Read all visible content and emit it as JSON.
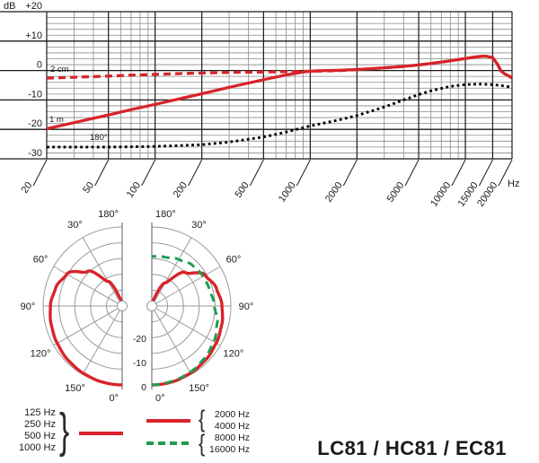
{
  "title": "LC81 / HC81 / EC81",
  "colors": {
    "red": "#d8232a",
    "green": "#1f9d4f",
    "black": "#000000",
    "grid_major": "#1a1a1a",
    "grid_minor": "#8a8a8a",
    "polar_grid": "#9a9a9a",
    "text": "#1a1a1a"
  },
  "chart_data": [
    {
      "type": "line",
      "name": "frequency_response",
      "y_axis_unit": "dB",
      "x_axis_unit": "Hz",
      "ylim": [
        -30,
        20
      ],
      "y_major_ticks": [
        "+20",
        "+10",
        "0",
        "-10",
        "-20",
        "-30"
      ],
      "y_major_values": [
        20,
        10,
        0,
        -10,
        -20,
        -30
      ],
      "y_minor_step_db": 2,
      "xlim": [
        20,
        20000
      ],
      "x_scale": "log",
      "x_tick_labels": [
        "20",
        "50",
        "100",
        "200",
        "500",
        "1000",
        "2000",
        "5000",
        "10000",
        "15000",
        "20000"
      ],
      "x_tick_values": [
        20,
        50,
        100,
        200,
        500,
        1000,
        2000,
        5000,
        10000,
        15000,
        20000
      ],
      "grid": true,
      "series": [
        {
          "name": "2 cm",
          "style": "dashed",
          "color": "red",
          "points": [
            [
              20,
              -2.6
            ],
            [
              30,
              -2.3
            ],
            [
              50,
              -1.9
            ],
            [
              70,
              -1.6
            ],
            [
              100,
              -1.3
            ],
            [
              150,
              -1.0
            ],
            [
              200,
              -0.85
            ],
            [
              300,
              -0.65
            ],
            [
              500,
              -0.5
            ],
            [
              700,
              -0.4
            ],
            [
              1000,
              -0.25
            ],
            [
              1500,
              -0.05
            ],
            [
              2000,
              0.3
            ],
            [
              3000,
              0.9
            ],
            [
              4000,
              1.4
            ],
            [
              5000,
              1.9
            ],
            [
              6000,
              2.4
            ],
            [
              8000,
              3.3
            ],
            [
              10000,
              4.1
            ],
            [
              12000,
              4.7
            ],
            [
              13500,
              4.9
            ],
            [
              15000,
              4.4
            ],
            [
              16000,
              2.4
            ],
            [
              17000,
              -0.2
            ],
            [
              18000,
              -1.2
            ],
            [
              19000,
              -1.8
            ],
            [
              20000,
              -2.6
            ]
          ]
        },
        {
          "name": "1 m",
          "style": "solid",
          "color": "red",
          "points": [
            [
              20,
              -19.8
            ],
            [
              30,
              -17.7
            ],
            [
              50,
              -15.1
            ],
            [
              70,
              -13.3
            ],
            [
              100,
              -11.5
            ],
            [
              150,
              -9.4
            ],
            [
              200,
              -7.9
            ],
            [
              300,
              -5.7
            ],
            [
              500,
              -3.1
            ],
            [
              700,
              -1.5
            ],
            [
              900,
              -0.5
            ],
            [
              1100,
              -0.1
            ],
            [
              1500,
              0.05
            ],
            [
              2000,
              0.35
            ],
            [
              3000,
              0.9
            ],
            [
              4000,
              1.4
            ],
            [
              5000,
              1.9
            ],
            [
              6000,
              2.4
            ],
            [
              8000,
              3.3
            ],
            [
              10000,
              4.1
            ],
            [
              12000,
              4.7
            ],
            [
              13500,
              4.9
            ],
            [
              15000,
              4.4
            ],
            [
              16000,
              2.4
            ],
            [
              17000,
              -0.2
            ],
            [
              18000,
              -1.2
            ],
            [
              19000,
              -1.8
            ],
            [
              20000,
              -2.6
            ]
          ]
        },
        {
          "name": "180°",
          "style": "dotted",
          "color": "black",
          "points": [
            [
              20,
              -26
            ],
            [
              50,
              -26
            ],
            [
              100,
              -25.8
            ],
            [
              200,
              -25.2
            ],
            [
              300,
              -24.3
            ],
            [
              500,
              -22.6
            ],
            [
              700,
              -20.9
            ],
            [
              1000,
              -18.8
            ],
            [
              1500,
              -16.9
            ],
            [
              2000,
              -15.3
            ],
            [
              3000,
              -12.4
            ],
            [
              4000,
              -10
            ],
            [
              5000,
              -8.2
            ],
            [
              6000,
              -6.9
            ],
            [
              8000,
              -5.4
            ],
            [
              10000,
              -4.8
            ],
            [
              12000,
              -4.6
            ],
            [
              15000,
              -4.8
            ],
            [
              17000,
              -5.1
            ],
            [
              20000,
              -5.7
            ]
          ]
        }
      ]
    },
    {
      "type": "polar",
      "name": "polar_pattern",
      "rings_db": [
        0,
        -5,
        -10,
        -15,
        -20
      ],
      "radial_tick_labels": [
        "0",
        "-10",
        "-20"
      ],
      "angle_labels": [
        "180°",
        "150°",
        "120°",
        "90°",
        "60°",
        "30°",
        "0°"
      ],
      "curves": [
        {
          "side": "left",
          "label": "125-1000 Hz",
          "color": "red",
          "style": "solid",
          "angles_deg": [
            0,
            15,
            30,
            45,
            60,
            75,
            90,
            105,
            120,
            135,
            150,
            165,
            180
          ],
          "attenuation_db": [
            0,
            -0.1,
            -0.4,
            -0.8,
            -1.3,
            -1.8,
            -2.3,
            -3.2,
            -4.8,
            -9.5,
            -16,
            -22.5,
            -25
          ]
        },
        {
          "side": "right",
          "label": "2000-4000 Hz",
          "color": "red",
          "style": "solid",
          "angles_deg": [
            0,
            15,
            30,
            45,
            60,
            75,
            90,
            105,
            120,
            135,
            150,
            165,
            180
          ],
          "attenuation_db": [
            0,
            -0.1,
            -0.5,
            -0.9,
            -1.5,
            -2.1,
            -2.8,
            -3.8,
            -5.5,
            -10,
            -16.5,
            -23,
            -25
          ]
        },
        {
          "side": "right",
          "label": "8000-16000 Hz",
          "color": "green",
          "style": "dashed",
          "angles_deg": [
            0,
            15,
            30,
            45,
            60,
            75,
            90,
            105,
            120,
            135,
            150,
            165,
            180
          ],
          "attenuation_db": [
            0,
            -0.3,
            -0.8,
            -1.5,
            -2.4,
            -3.6,
            -5.2,
            -6,
            -6.3,
            -6.8,
            -8,
            -9,
            -9.3
          ]
        }
      ]
    }
  ],
  "legend": {
    "left_group": {
      "labels": [
        "125 Hz",
        "250 Hz",
        "500 Hz",
        "1000 Hz"
      ],
      "brace": "}",
      "line_style": "solid",
      "line_color": "red"
    },
    "right_groups": [
      {
        "labels": [
          "2000 Hz",
          "4000 Hz"
        ],
        "brace": "{",
        "line_style": "solid",
        "line_color": "red"
      },
      {
        "labels": [
          "8000 Hz",
          "16000 Hz"
        ],
        "brace": "{",
        "line_style": "dashed",
        "line_color": "green"
      }
    ]
  }
}
